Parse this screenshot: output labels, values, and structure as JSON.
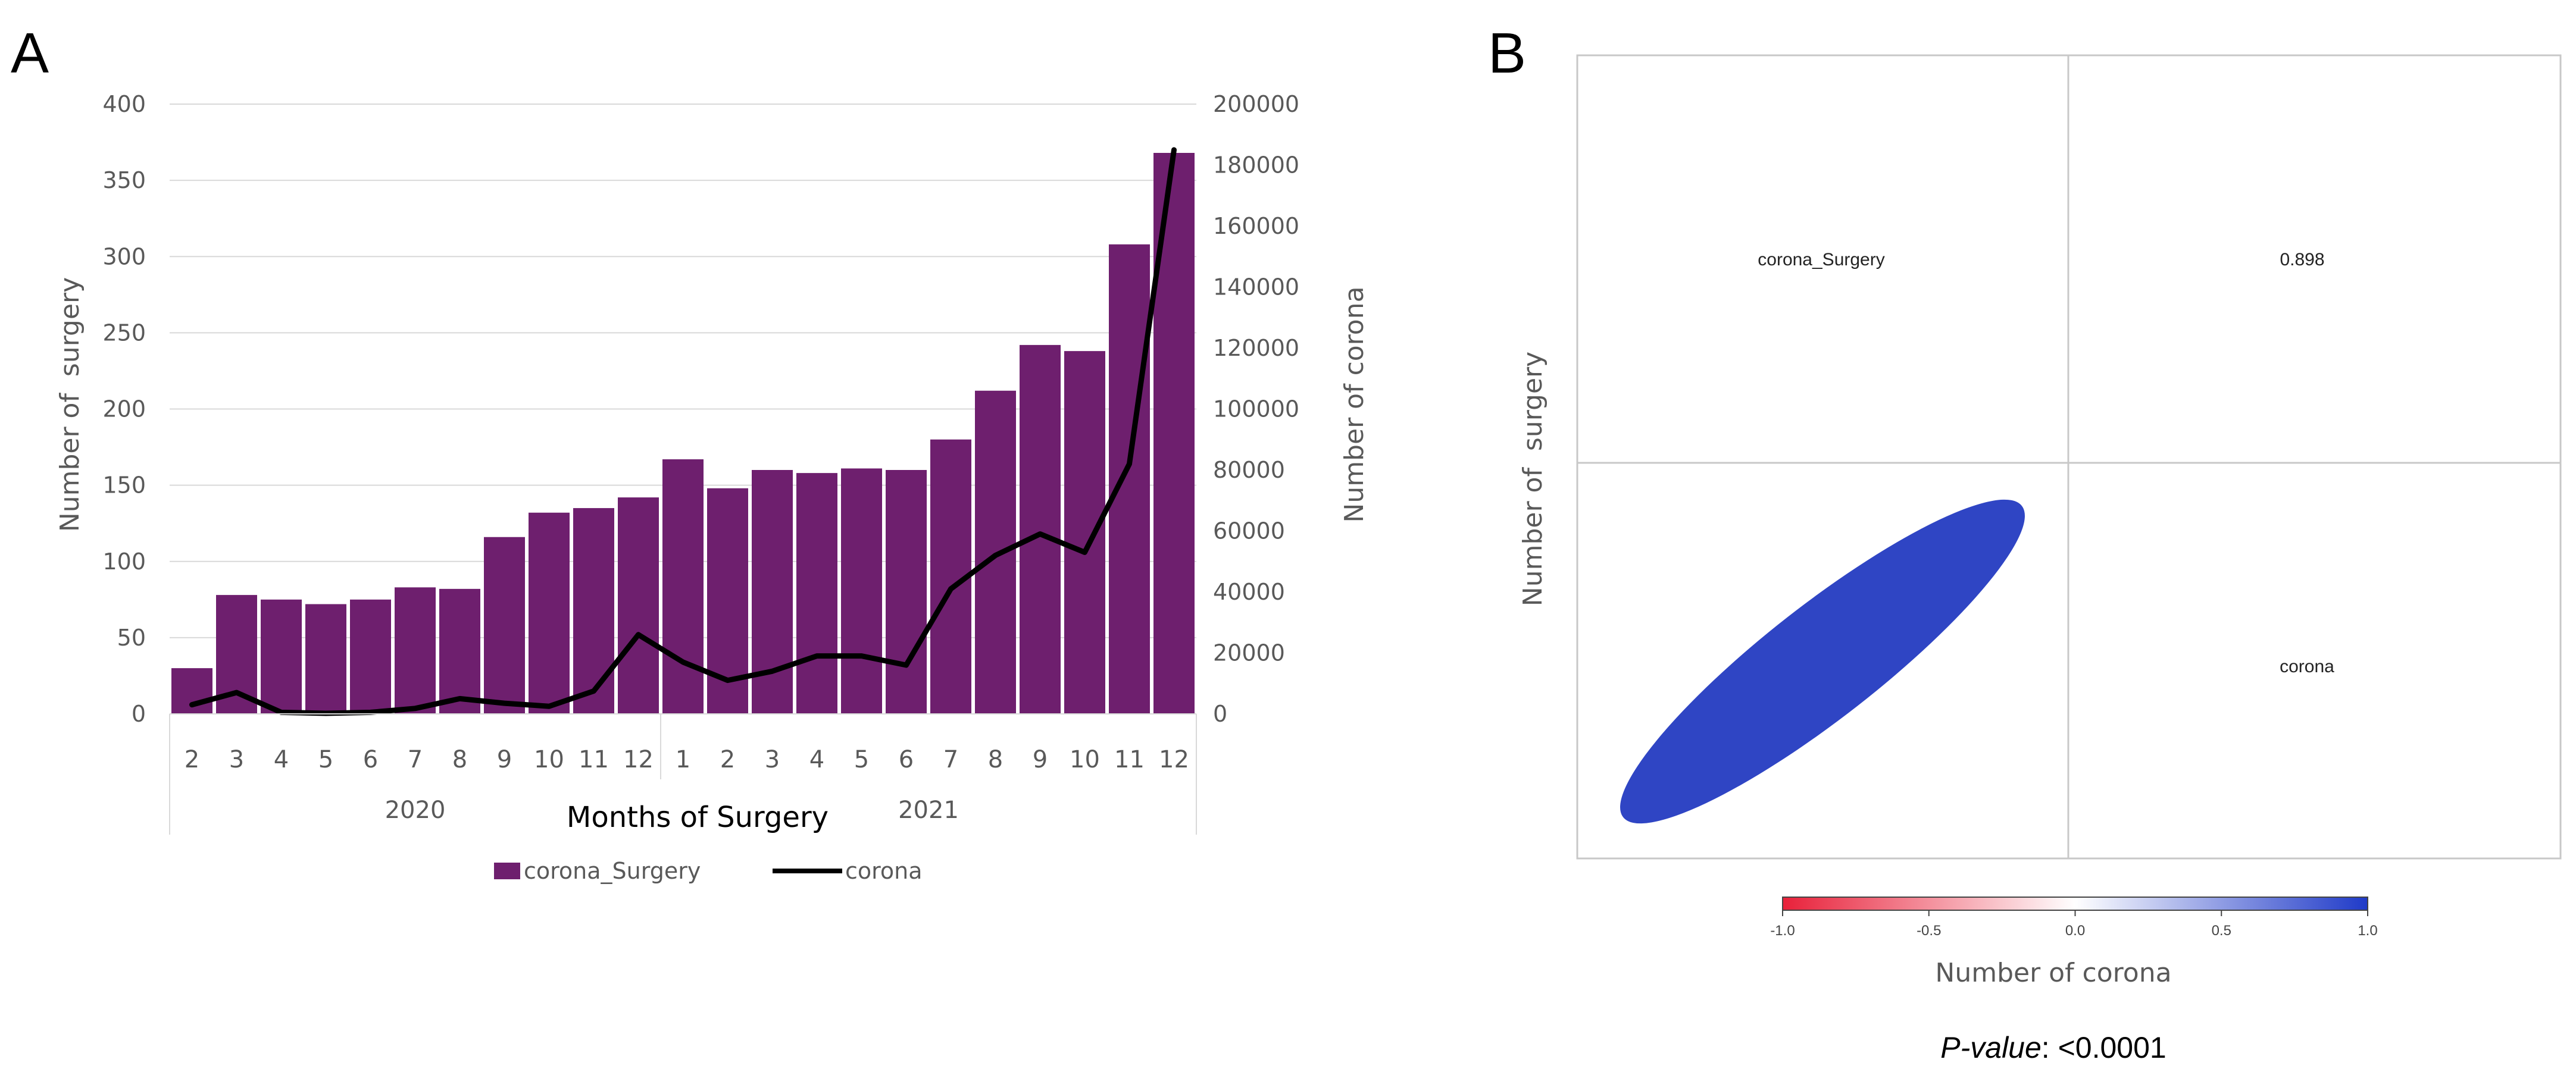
{
  "panels": {
    "a_letter": "A",
    "b_letter": "B"
  },
  "chart_data": [
    {
      "type": "bar+line",
      "title": "",
      "categories": [
        "2",
        "3",
        "4",
        "5",
        "6",
        "7",
        "8",
        "9",
        "10",
        "11",
        "12",
        "1",
        "2",
        "3",
        "4",
        "5",
        "6",
        "7",
        "8",
        "9",
        "10",
        "11",
        "12"
      ],
      "year_groups": [
        {
          "label": "2020",
          "start": 0,
          "end": 10
        },
        {
          "label": "2021",
          "start": 11,
          "end": 22
        }
      ],
      "series": [
        {
          "name": "corona_Surgery",
          "type": "bar",
          "axis": "left",
          "color": "#6e1f6e",
          "values": [
            30,
            78,
            75,
            72,
            75,
            83,
            82,
            116,
            132,
            135,
            142,
            167,
            148,
            160,
            158,
            161,
            160,
            180,
            212,
            242,
            238,
            308,
            368
          ]
        },
        {
          "name": "corona",
          "type": "line",
          "axis": "right",
          "color": "#000000",
          "values": [
            3000,
            7000,
            500,
            200,
            500,
            1800,
            5000,
            3500,
            2500,
            7500,
            26000,
            17000,
            11000,
            14000,
            19000,
            19000,
            16000,
            41000,
            52000,
            59000,
            53000,
            82000,
            185000
          ]
        }
      ],
      "xlabel": "Months of Surgery",
      "ylabel": "Number of  surgery",
      "y2label": "Number of corona",
      "ylim": [
        0,
        400
      ],
      "y2lim": [
        0,
        200000
      ],
      "yticks": [
        0,
        50,
        100,
        150,
        200,
        250,
        300,
        350,
        400
      ],
      "y2ticks": [
        0,
        20000,
        40000,
        60000,
        80000,
        100000,
        120000,
        140000,
        160000,
        180000,
        200000
      ],
      "grid": true,
      "legend": [
        "corona_Surgery",
        "corona"
      ],
      "legend_position": "bottom"
    },
    {
      "type": "heatmap",
      "subtype": "correlation ellipse plot",
      "variables": [
        "corona_Surgery",
        "corona"
      ],
      "correlation": 0.898,
      "correlation_label": "0.898",
      "ylabel": "Number of  surgery",
      "xlabel": "Number of corona",
      "colorbar": {
        "ticks": [
          "-1.0",
          "-0.5",
          "0.0",
          "0.5",
          "1.0"
        ],
        "min_color": "#e8213a",
        "mid_color": "#ffffff",
        "max_color": "#1f3ac8"
      },
      "ellipse_color": "#2f45c4",
      "p_value_label": "P-value",
      "p_value": ": <0.0001"
    }
  ]
}
